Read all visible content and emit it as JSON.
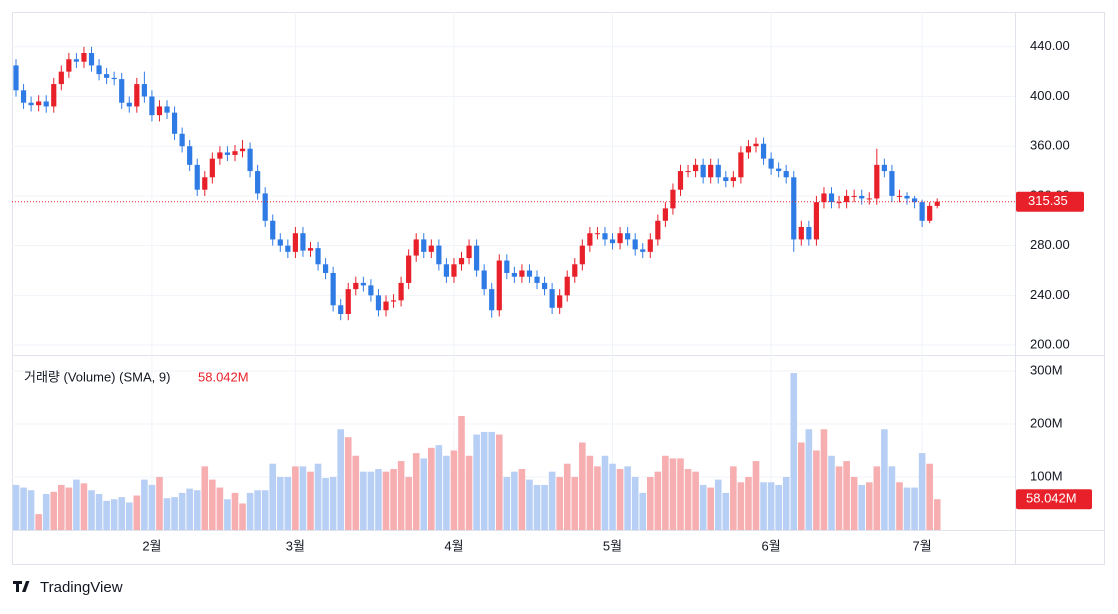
{
  "chart_data": {
    "type": "candlestick",
    "xlim": [
      -0.53,
      132.3
    ],
    "xticks": [
      {
        "value": 18,
        "label": "2월"
      },
      {
        "value": 37,
        "label": "3월"
      },
      {
        "value": 58,
        "label": "4월"
      },
      {
        "value": 79,
        "label": "5월"
      },
      {
        "value": 100,
        "label": "6월"
      },
      {
        "value": 120,
        "label": "7월"
      }
    ],
    "ylim": [
      192,
      468
    ],
    "yticks": [
      {
        "value": 200,
        "label": "200.00"
      },
      {
        "value": 240,
        "label": "240.00"
      },
      {
        "value": 280,
        "label": "280.00"
      },
      {
        "value": 320,
        "label": "320.00"
      },
      {
        "value": 360,
        "label": "360.00"
      },
      {
        "value": 400,
        "label": "400.00"
      },
      {
        "value": 440,
        "label": "440.00"
      }
    ],
    "up_color": "#e8202a",
    "down_color": "#2f7be6",
    "grid": true,
    "open": [
      425,
      405,
      395,
      393,
      396,
      392,
      410,
      420,
      430,
      428,
      435,
      425,
      418,
      415,
      414,
      395,
      392,
      410,
      400,
      385,
      392,
      387,
      370,
      360,
      345,
      325,
      335,
      350,
      355,
      353,
      356,
      358,
      340,
      322,
      300,
      285,
      280,
      275,
      290,
      276,
      278,
      265,
      258,
      232,
      225,
      245,
      250,
      248,
      240,
      228,
      235,
      236,
      250,
      272,
      285,
      275,
      280,
      265,
      255,
      265,
      270,
      280,
      260,
      245,
      228,
      268,
      258,
      255,
      260,
      255,
      250,
      245,
      230,
      240,
      255,
      265,
      280,
      290,
      290,
      285,
      282,
      290,
      285,
      277,
      275,
      285,
      300,
      310,
      325,
      340,
      340,
      345,
      335,
      345,
      335,
      332,
      335,
      355,
      360,
      362,
      350,
      342,
      340,
      335,
      285,
      295,
      285,
      315,
      322,
      315,
      315,
      320,
      320,
      318,
      318,
      345,
      340,
      320,
      320,
      318,
      315,
      300,
      312
    ],
    "high": [
      430,
      410,
      400,
      401,
      401,
      415,
      425,
      435,
      435,
      440,
      440,
      430,
      423,
      420,
      419,
      400,
      415,
      420,
      405,
      397,
      397,
      392,
      375,
      365,
      350,
      340,
      355,
      360,
      360,
      361,
      365,
      363,
      345,
      327,
      305,
      290,
      285,
      295,
      295,
      283,
      283,
      270,
      263,
      237,
      250,
      255,
      255,
      253,
      245,
      240,
      241,
      255,
      277,
      290,
      290,
      285,
      285,
      270,
      270,
      275,
      285,
      285,
      265,
      250,
      273,
      273,
      263,
      265,
      265,
      260,
      255,
      250,
      245,
      260,
      270,
      285,
      295,
      295,
      295,
      290,
      295,
      295,
      290,
      282,
      290,
      305,
      315,
      330,
      345,
      345,
      350,
      350,
      350,
      350,
      340,
      340,
      360,
      365,
      367,
      367,
      355,
      347,
      345,
      340,
      300,
      300,
      320,
      327,
      327,
      320,
      325,
      325,
      325,
      323,
      358,
      350,
      345,
      325,
      323,
      320,
      317,
      315,
      318
    ],
    "low": [
      400,
      390,
      388,
      388,
      387,
      387,
      405,
      415,
      423,
      423,
      420,
      413,
      410,
      409,
      390,
      387,
      387,
      395,
      380,
      380,
      382,
      365,
      355,
      340,
      320,
      320,
      330,
      345,
      348,
      348,
      351,
      335,
      317,
      295,
      280,
      275,
      270,
      270,
      271,
      271,
      260,
      253,
      227,
      220,
      220,
      240,
      243,
      235,
      223,
      223,
      230,
      231,
      245,
      267,
      270,
      270,
      260,
      250,
      250,
      260,
      265,
      255,
      240,
      222,
      223,
      253,
      250,
      250,
      250,
      245,
      240,
      225,
      225,
      235,
      250,
      260,
      275,
      285,
      280,
      277,
      277,
      280,
      272,
      270,
      270,
      280,
      295,
      305,
      320,
      335,
      335,
      330,
      330,
      330,
      327,
      327,
      330,
      350,
      355,
      345,
      337,
      335,
      330,
      275,
      280,
      280,
      280,
      310,
      310,
      310,
      310,
      315,
      313,
      313,
      313,
      335,
      315,
      315,
      313,
      310,
      295,
      298,
      310
    ],
    "close": [
      405,
      395,
      393,
      396,
      392,
      410,
      420,
      430,
      428,
      435,
      425,
      418,
      415,
      414,
      395,
      392,
      410,
      400,
      385,
      392,
      387,
      370,
      360,
      345,
      325,
      335,
      350,
      355,
      353,
      356,
      358,
      340,
      322,
      300,
      285,
      280,
      275,
      290,
      276,
      278,
      265,
      258,
      232,
      225,
      245,
      250,
      248,
      240,
      228,
      235,
      236,
      250,
      272,
      285,
      275,
      280,
      265,
      255,
      265,
      270,
      280,
      260,
      245,
      228,
      268,
      258,
      255,
      260,
      255,
      250,
      245,
      230,
      240,
      255,
      265,
      280,
      290,
      290,
      285,
      282,
      290,
      285,
      277,
      275,
      285,
      300,
      310,
      325,
      340,
      340,
      345,
      335,
      345,
      335,
      332,
      335,
      355,
      360,
      362,
      350,
      342,
      340,
      335,
      285,
      295,
      285,
      315,
      322,
      315,
      315,
      320,
      320,
      318,
      318,
      345,
      340,
      320,
      320,
      318,
      315,
      300,
      312,
      315.35
    ],
    "volume": {
      "title": "거래량 (Volume) (SMA, 9)",
      "last_label": "58.042M",
      "up_color": "#f7aeb0",
      "down_color": "#b7cff5",
      "ylim": [
        0,
        330
      ],
      "yticks": [
        {
          "value": 100,
          "label": "100M"
        },
        {
          "value": 200,
          "label": "200M"
        },
        {
          "value": 300,
          "label": "300M"
        }
      ],
      "values": [
        85,
        80,
        75,
        30,
        68,
        72,
        85,
        80,
        95,
        88,
        75,
        68,
        55,
        58,
        62,
        52,
        65,
        95,
        85,
        100,
        60,
        62,
        70,
        78,
        75,
        120,
        95,
        80,
        58,
        70,
        50,
        70,
        75,
        75,
        125,
        100,
        100,
        120,
        120,
        110,
        125,
        98,
        100,
        190,
        175,
        140,
        110,
        110,
        115,
        110,
        115,
        130,
        100,
        145,
        135,
        155,
        160,
        140,
        150,
        215,
        140,
        180,
        185,
        185,
        180,
        100,
        110,
        115,
        95,
        85,
        85,
        110,
        100,
        125,
        100,
        165,
        140,
        120,
        140,
        125,
        115,
        120,
        100,
        70,
        100,
        110,
        140,
        135,
        135,
        115,
        110,
        85,
        80,
        95,
        70,
        120,
        90,
        100,
        130,
        90,
        90,
        85,
        100,
        296,
        165,
        190,
        150,
        190,
        140,
        120,
        130,
        100,
        85,
        90,
        120,
        190,
        120,
        90,
        80,
        80,
        145,
        125,
        58.042
      ]
    },
    "brand": "TradingView"
  }
}
